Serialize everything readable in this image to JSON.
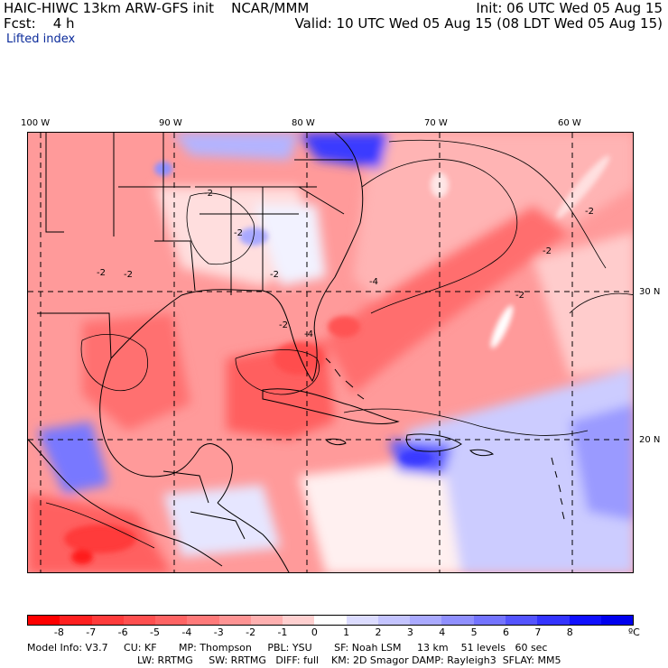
{
  "header": {
    "left_line1": "HAIC-HIWC 13km ARW-GFS init    NCAR/MMM",
    "left_line2": "Fcst:    4 h",
    "right_line1": "Init: 06 UTC Wed 05 Aug 15",
    "right_line2": "Valid: 10 UTC Wed 05 Aug 15 (08 LDT Wed 05 Aug 15)",
    "field_name": "Lifted index"
  },
  "map": {
    "lon_labels": [
      "100 W",
      "90 W",
      "80 W",
      "70 W",
      "60 W"
    ],
    "lat_labels": [
      "30 N",
      "20 N"
    ],
    "contour_labels": [
      "-2",
      "-2",
      "-2",
      "-2",
      "-2",
      "-4",
      "-4",
      "-2",
      "-2",
      "-2",
      "-2"
    ]
  },
  "colorbar": {
    "ticks": [
      "-8",
      "-7",
      "-6",
      "-5",
      "-4",
      "-3",
      "-2",
      "-1",
      "0",
      "1",
      "2",
      "3",
      "4",
      "5",
      "6",
      "7",
      "8"
    ],
    "unit": "ºC",
    "colors": [
      "#ff0000",
      "#ff2020",
      "#ff3c3c",
      "#ff5050",
      "#ff6464",
      "#ff7a7a",
      "#ff9494",
      "#ffb0b0",
      "#ffd0d0",
      "#ffffff",
      "#dcdcff",
      "#c4c4ff",
      "#aaaaff",
      "#9090ff",
      "#7474ff",
      "#5454ff",
      "#3434ff",
      "#1010ff",
      "#0000ee"
    ]
  },
  "model_info": {
    "line1": "Model Info: V3.7     CU: KF       MP: Thompson     PBL: YSU       SF: Noah LSM     13 km    51 levels   60 sec",
    "line2": "LW: RRTMG     SW: RRTMG   DIFF: full    KM: 2D Smagor DAMP: Rayleigh3  SFLAY: MM5"
  }
}
